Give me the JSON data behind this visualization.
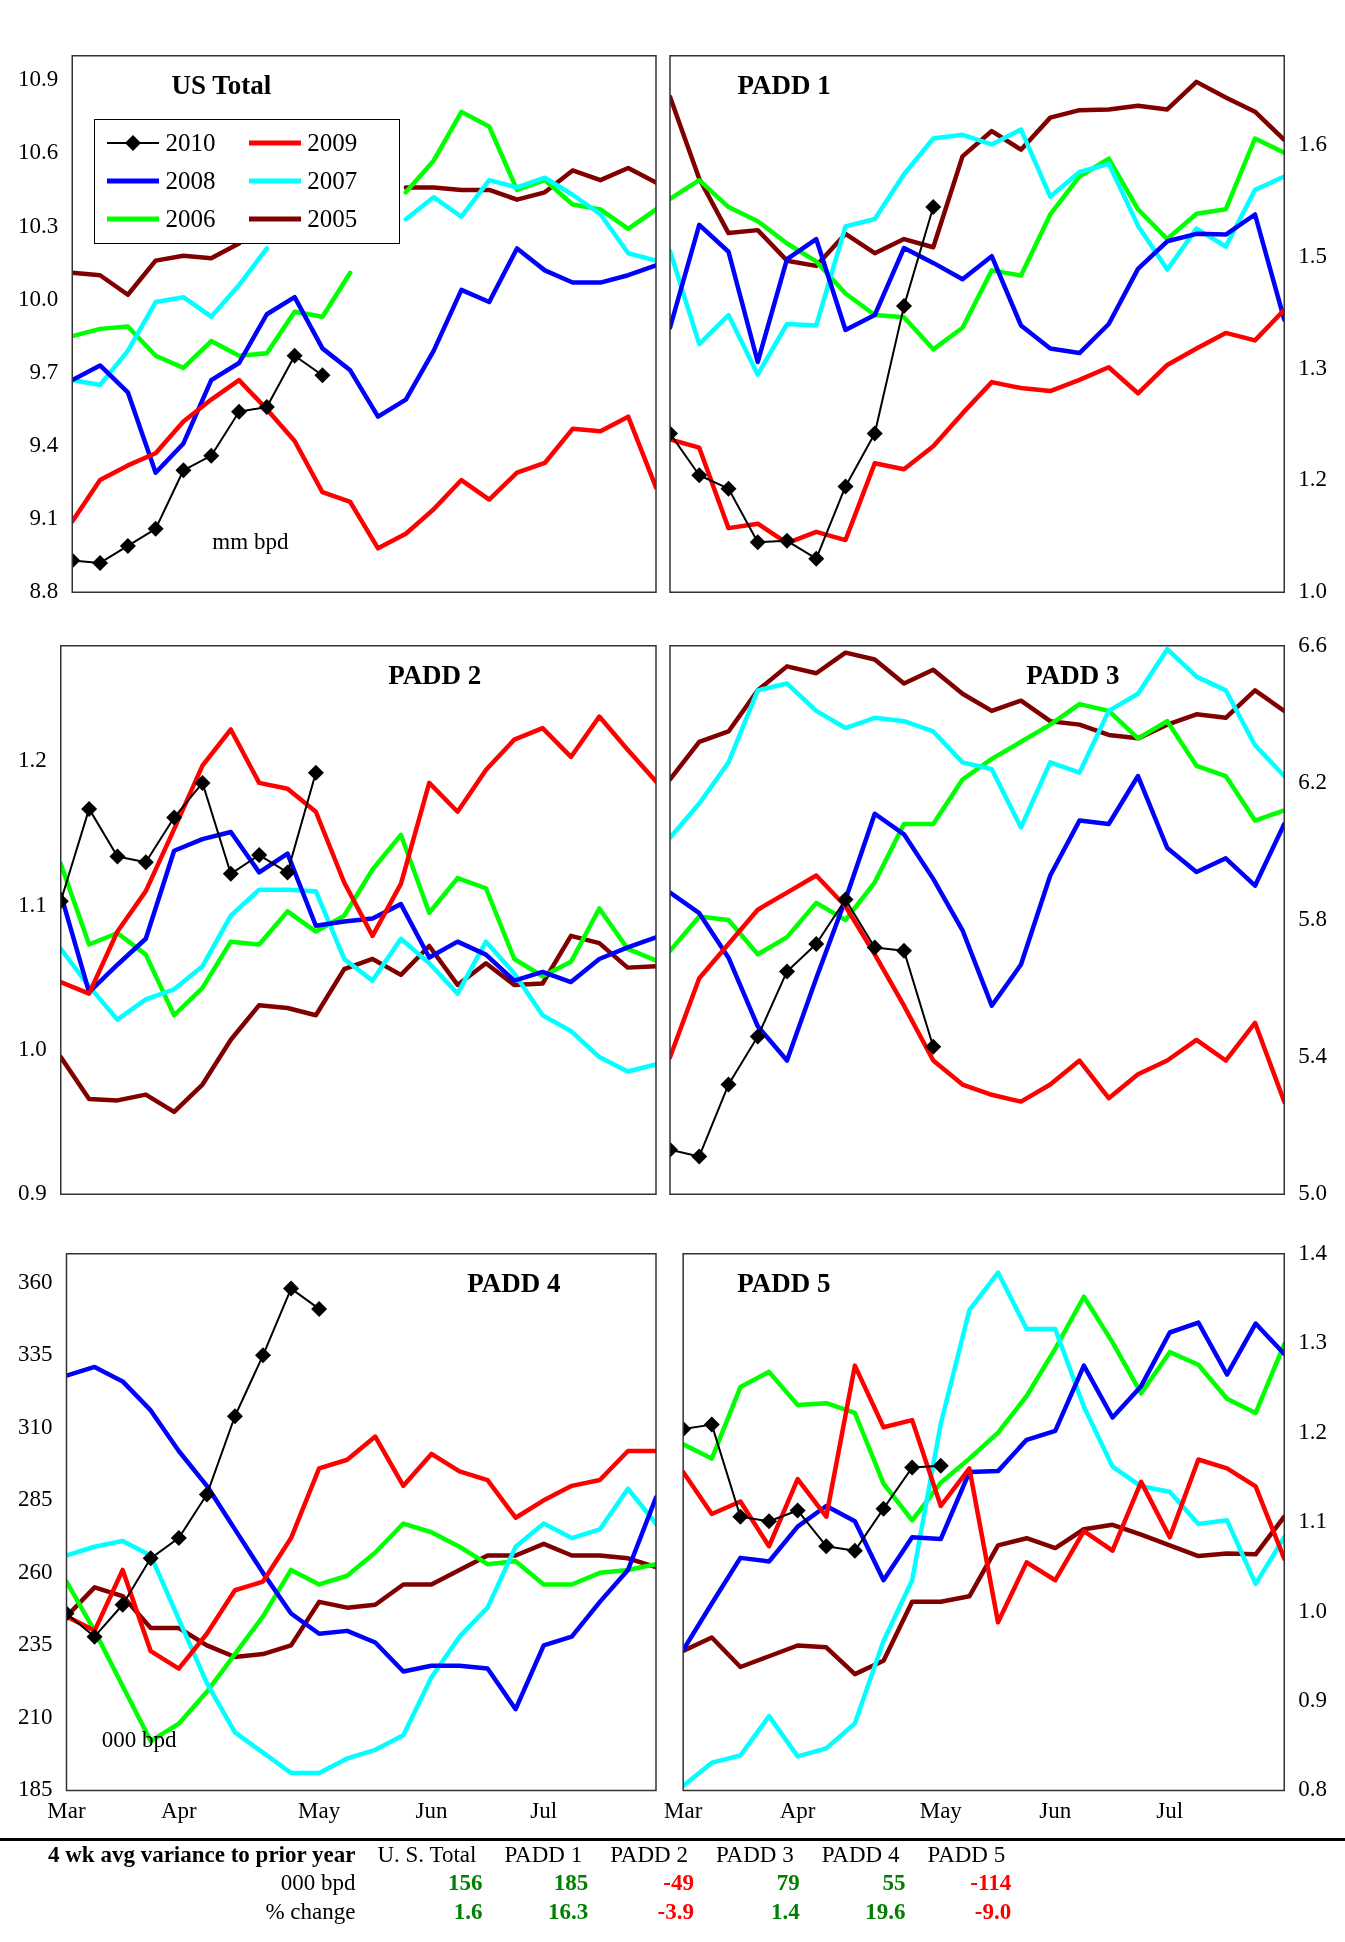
{
  "chart_data": [
    {
      "type": "line",
      "title": "US Total",
      "categories": [
        null,
        null,
        null,
        null,
        null,
        null,
        null,
        null,
        null,
        null,
        null,
        null,
        null,
        null,
        null,
        null,
        null,
        null,
        null,
        null,
        null,
        null
      ],
      "ylim": [
        8.8,
        11.0
      ],
      "yticks": [
        8.8,
        9.1,
        9.4,
        9.7,
        {
          "value": 10,
          "label": "10.0"
        },
        10.3,
        10.6,
        10.9
      ],
      "tick_labels": "y",
      "legend": "top left",
      "annotations": [
        "mm bpd"
      ],
      "series": [
        {
          "name": "2010",
          "color": "#000000",
          "marker": "diamond",
          "values": [
            8.93,
            8.92,
            8.99,
            9.06,
            9.3,
            9.36,
            9.54,
            9.56,
            9.77,
            9.69,
            null,
            null,
            null,
            null,
            null,
            null,
            null,
            null,
            null,
            null,
            null,
            null
          ]
        },
        {
          "name": "2009",
          "color": "#ff0000",
          "values": [
            9.09,
            9.26,
            9.32,
            9.37,
            9.5,
            9.59,
            9.67,
            9.55,
            9.42,
            9.21,
            9.17,
            8.98,
            9.04,
            9.14,
            9.26,
            9.18,
            9.29,
            9.33,
            9.47,
            9.46,
            9.52,
            9.23
          ]
        },
        {
          "name": "2008",
          "color": "#0000ff",
          "values": [
            9.67,
            9.73,
            9.62,
            9.29,
            9.41,
            9.67,
            9.74,
            9.94,
            10.01,
            9.8,
            9.71,
            9.52,
            9.59,
            9.79,
            10.04,
            9.99,
            10.21,
            10.12,
            10.07,
            10.07,
            10.1,
            10.14
          ]
        },
        {
          "name": "2007",
          "color": "#00ffff",
          "values": [
            9.67,
            9.65,
            9.79,
            9.99,
            10.01,
            9.93,
            10.06,
            10.21,
            null,
            null,
            null,
            null,
            10.33,
            10.42,
            10.34,
            10.49,
            10.46,
            10.5,
            10.43,
            10.35,
            10.19,
            10.16
          ]
        },
        {
          "name": "2006",
          "color": "#00ff00",
          "values": [
            9.85,
            9.88,
            9.89,
            9.77,
            9.72,
            9.83,
            9.77,
            9.78,
            9.95,
            9.93,
            10.11,
            null,
            10.44,
            10.57,
            10.77,
            10.71,
            10.45,
            10.49,
            10.39,
            10.37,
            10.29,
            10.37
          ]
        },
        {
          "name": "2005",
          "color": "#800000",
          "values": [
            10.11,
            10.1,
            10.02,
            10.16,
            10.18,
            10.17,
            10.23,
            null,
            null,
            null,
            null,
            null,
            10.46,
            10.46,
            10.45,
            10.45,
            10.41,
            10.44,
            10.53,
            10.49,
            10.54,
            10.48
          ]
        }
      ]
    },
    {
      "type": "line",
      "title": "PADD 1",
      "categories": [
        null,
        null,
        null,
        null,
        null,
        null,
        null,
        null,
        null,
        null,
        null,
        null,
        null,
        null,
        null,
        null,
        null,
        null,
        null,
        null,
        null,
        null
      ],
      "ylim": [
        1.0,
        1.72
      ],
      "yticks": [
        {
          "value": 1,
          "label": "1.0"
        },
        {
          "value": 1.15,
          "label": "1.2"
        },
        1.3,
        {
          "value": 1.45,
          "label": "1.5"
        },
        1.6
      ],
      "tick_labels": "y",
      "series": [
        {
          "color": "#000000",
          "marker": "diamond",
          "values": [
            1.213,
            1.157,
            1.139,
            1.067,
            1.069,
            1.045,
            1.142,
            1.213,
            1.384,
            1.517,
            null,
            null,
            null,
            null,
            null,
            null,
            null,
            null,
            null,
            null,
            null,
            null
          ]
        },
        {
          "color": "#ff0000",
          "values": [
            1.205,
            1.194,
            1.086,
            1.092,
            1.066,
            1.081,
            1.07,
            1.173,
            1.165,
            1.196,
            1.24,
            1.282,
            1.274,
            1.27,
            1.285,
            1.302,
            1.267,
            1.305,
            1.327,
            1.348,
            1.338,
            1.379
          ]
        },
        {
          "color": "#0000ff",
          "values": [
            1.355,
            1.493,
            1.457,
            1.309,
            1.447,
            1.474,
            1.352,
            1.372,
            1.462,
            1.442,
            1.42,
            1.451,
            1.358,
            1.327,
            1.321,
            1.36,
            1.434,
            1.471,
            1.481,
            1.48,
            1.507,
            1.366
          ]
        },
        {
          "color": "#00ffff",
          "values": [
            1.458,
            1.333,
            1.372,
            1.292,
            1.36,
            1.358,
            1.491,
            1.501,
            1.561,
            1.609,
            1.614,
            1.601,
            1.621,
            1.531,
            1.564,
            1.575,
            1.492,
            1.433,
            1.488,
            1.464,
            1.54,
            1.558
          ]
        },
        {
          "color": "#00ff00",
          "values": [
            1.528,
            1.553,
            1.517,
            1.498,
            1.468,
            1.444,
            1.401,
            1.372,
            1.369,
            1.326,
            1.355,
            1.432,
            1.425,
            1.507,
            1.558,
            1.582,
            1.514,
            1.474,
            1.508,
            1.514,
            1.609,
            1.59
          ]
        },
        {
          "color": "#800000",
          "values": [
            1.665,
            1.555,
            1.482,
            1.486,
            1.445,
            1.438,
            1.481,
            1.455,
            1.474,
            1.463,
            1.585,
            1.619,
            1.594,
            1.637,
            1.647,
            1.648,
            1.653,
            1.648,
            1.685,
            1.664,
            1.645,
            1.607
          ]
        }
      ]
    },
    {
      "type": "line",
      "title": "PADD 2",
      "categories": [
        null,
        null,
        null,
        null,
        null,
        null,
        null,
        null,
        null,
        null,
        null,
        null,
        null,
        null,
        null,
        null,
        null,
        null,
        null,
        null,
        null,
        null
      ],
      "ylim": [
        0.9,
        1.28
      ],
      "yticks": [
        0.9,
        {
          "value": 1,
          "label": "1.0"
        },
        1.1,
        1.2
      ],
      "tick_labels": "y",
      "series": [
        {
          "color": "#000000",
          "marker": "diamond",
          "values": [
            1.103,
            1.167,
            1.134,
            1.13,
            1.161,
            1.185,
            1.122,
            1.135,
            1.123,
            1.192,
            null,
            null,
            null,
            null,
            null,
            null,
            null,
            null,
            null,
            null,
            null,
            null
          ]
        },
        {
          "color": "#ff0000",
          "values": [
            1.047,
            1.039,
            1.082,
            1.11,
            1.153,
            1.197,
            1.222,
            1.185,
            1.181,
            1.165,
            1.116,
            1.079,
            1.115,
            1.185,
            1.165,
            1.194,
            1.215,
            1.223,
            1.203,
            1.231,
            1.208,
            1.186
          ]
        },
        {
          "color": "#0000ff",
          "values": [
            1.108,
            1.04,
            1.059,
            1.077,
            1.138,
            1.146,
            1.151,
            1.123,
            1.136,
            1.086,
            1.089,
            1.091,
            1.101,
            1.064,
            1.075,
            1.066,
            1.048,
            1.054,
            1.047,
            1.063,
            1.071,
            1.078
          ]
        },
        {
          "color": "#00ffff",
          "values": [
            1.07,
            1.044,
            1.021,
            1.035,
            1.042,
            1.058,
            1.093,
            1.111,
            1.111,
            1.11,
            1.063,
            1.048,
            1.077,
            1.06,
            1.039,
            1.075,
            1.053,
            1.024,
            1.013,
            0.995,
            0.985,
            0.99
          ]
        },
        {
          "color": "#00ff00",
          "values": [
            1.129,
            1.073,
            1.081,
            1.066,
            1.024,
            1.043,
            1.075,
            1.073,
            1.096,
            1.082,
            1.093,
            1.125,
            1.149,
            1.095,
            1.119,
            1.112,
            1.063,
            1.051,
            1.061,
            1.098,
            1.07,
            1.062
          ]
        },
        {
          "color": "#800000",
          "values": [
            0.995,
            0.966,
            0.965,
            0.969,
            0.957,
            0.976,
            1.007,
            1.031,
            1.029,
            1.024,
            1.056,
            1.063,
            1.052,
            1.072,
            1.045,
            1.06,
            1.045,
            1.046,
            1.079,
            1.074,
            1.057,
            1.058
          ]
        }
      ]
    },
    {
      "type": "line",
      "title": "PADD 3",
      "categories": [
        null,
        null,
        null,
        null,
        null,
        null,
        null,
        null,
        null,
        null,
        null,
        null,
        null,
        null,
        null,
        null,
        null,
        null,
        null,
        null,
        null,
        null
      ],
      "ylim": [
        5.0,
        6.6
      ],
      "yticks": [
        {
          "value": 5,
          "label": "5.0"
        },
        5.4,
        5.8,
        6.2,
        6.6
      ],
      "tick_labels": "y",
      "series": [
        {
          "color": "#000000",
          "marker": "diamond",
          "values": [
            5.13,
            5.11,
            5.32,
            5.46,
            5.65,
            5.73,
            5.86,
            5.72,
            5.71,
            5.43,
            null,
            null,
            null,
            null,
            null,
            null,
            null,
            null,
            null,
            null,
            null,
            null
          ]
        },
        {
          "color": "#ff0000",
          "values": [
            5.4,
            5.63,
            5.73,
            5.83,
            5.88,
            5.93,
            5.84,
            5.7,
            5.55,
            5.39,
            5.32,
            5.29,
            5.27,
            5.32,
            5.39,
            5.28,
            5.35,
            5.39,
            5.45,
            5.39,
            5.5,
            5.27
          ]
        },
        {
          "color": "#0000ff",
          "values": [
            5.88,
            5.82,
            5.69,
            5.49,
            5.39,
            5.63,
            5.86,
            6.11,
            6.05,
            5.92,
            5.77,
            5.55,
            5.67,
            5.93,
            6.09,
            6.08,
            6.22,
            6.01,
            5.94,
            5.98,
            5.9,
            6.08
          ]
        },
        {
          "color": "#00ffff",
          "values": [
            6.04,
            6.14,
            6.26,
            6.47,
            6.49,
            6.41,
            6.36,
            6.39,
            6.38,
            6.35,
            6.26,
            6.24,
            6.07,
            6.26,
            6.23,
            6.41,
            6.46,
            6.59,
            6.51,
            6.47,
            6.31,
            6.22
          ]
        },
        {
          "color": "#00ff00",
          "values": [
            5.71,
            5.81,
            5.8,
            5.7,
            5.75,
            5.85,
            5.8,
            5.91,
            6.08,
            6.08,
            6.21,
            6.27,
            6.32,
            6.37,
            6.43,
            6.41,
            6.33,
            6.38,
            6.25,
            6.22,
            6.09,
            6.12
          ]
        },
        {
          "color": "#800000",
          "values": [
            6.21,
            6.32,
            6.35,
            6.47,
            6.54,
            6.52,
            6.58,
            6.56,
            6.49,
            6.53,
            6.46,
            6.41,
            6.44,
            6.38,
            6.37,
            6.34,
            6.33,
            6.37,
            6.4,
            6.39,
            6.47,
            6.41
          ]
        }
      ]
    },
    {
      "type": "line",
      "title": "PADD 4",
      "categories": [
        "Mar",
        null,
        null,
        null,
        "Apr",
        null,
        null,
        null,
        null,
        "May",
        null,
        null,
        null,
        "Jun",
        null,
        null,
        null,
        "Jul",
        null,
        null,
        null,
        null
      ],
      "ylim": [
        185,
        370
      ],
      "yticks": [
        185,
        210,
        235,
        260,
        285,
        310,
        335,
        360
      ],
      "annotations": [
        "000 bpd"
      ],
      "series": [
        {
          "color": "#000000",
          "marker": "diamond",
          "values": [
            246,
            238,
            249,
            265,
            272,
            287,
            314,
            335,
            358,
            351,
            null,
            null,
            null,
            null,
            null,
            null,
            null,
            null,
            null,
            null,
            null,
            null
          ]
        },
        {
          "color": "#ff0000",
          "values": [
            245,
            240,
            261,
            233,
            227,
            239,
            254,
            257,
            272,
            296,
            299,
            307,
            290,
            301,
            295,
            292,
            279,
            285,
            290,
            292,
            302,
            302
          ]
        },
        {
          "color": "#0000ff",
          "values": [
            328,
            331,
            326,
            316,
            302,
            290,
            275,
            260,
            246,
            239,
            240,
            236,
            226,
            228,
            228,
            227,
            213,
            235,
            238,
            250,
            261,
            286
          ]
        },
        {
          "color": "#00ffff",
          "values": [
            266,
            269,
            271,
            266,
            244,
            222,
            205,
            198,
            191,
            191,
            196,
            199,
            204,
            224,
            238,
            248,
            269,
            277,
            272,
            275,
            289,
            277
          ]
        },
        {
          "color": "#00ff00",
          "values": [
            257,
            240,
            221,
            202,
            208,
            219,
            232,
            245,
            261,
            256,
            259,
            267,
            277,
            274,
            269,
            263,
            264,
            256,
            256,
            260,
            261,
            263
          ]
        },
        {
          "color": "#800000",
          "values": [
            245,
            255,
            252,
            241,
            241,
            235,
            231,
            232,
            235,
            250,
            248,
            249,
            256,
            256,
            261,
            266,
            266,
            270,
            266,
            266,
            265,
            262
          ]
        }
      ]
    },
    {
      "type": "line",
      "title": "PADD 5",
      "categories": [
        "Mar",
        null,
        null,
        null,
        "Apr",
        null,
        null,
        null,
        null,
        "May",
        null,
        null,
        null,
        "Jun",
        null,
        null,
        null,
        "Jul",
        null,
        null,
        null,
        null
      ],
      "ylim": [
        0.8,
        1.4
      ],
      "yticks": [
        0.8,
        0.9,
        {
          "value": 1,
          "label": "1.0"
        },
        1.1,
        1.2,
        1.3,
        1.4
      ],
      "series": [
        {
          "color": "#000000",
          "marker": "diamond",
          "values": [
            1.204,
            1.209,
            1.106,
            1.101,
            1.113,
            1.073,
            1.068,
            1.115,
            1.161,
            1.163,
            null,
            null,
            null,
            null,
            null,
            null,
            null,
            null,
            null,
            null,
            null,
            null
          ]
        },
        {
          "color": "#ff0000",
          "values": [
            1.156,
            1.109,
            1.123,
            1.073,
            1.148,
            1.106,
            1.275,
            1.206,
            1.214,
            1.118,
            1.16,
            0.988,
            1.055,
            1.035,
            1.09,
            1.068,
            1.145,
            1.083,
            1.17,
            1.16,
            1.14,
            1.059
          ]
        },
        {
          "color": "#0000ff",
          "values": [
            0.957,
            1.009,
            1.06,
            1.056,
            1.095,
            1.118,
            1.101,
            1.035,
            1.083,
            1.081,
            1.156,
            1.157,
            1.192,
            1.202,
            1.275,
            1.217,
            1.252,
            1.312,
            1.323,
            1.265,
            1.322,
            1.288
          ]
        },
        {
          "color": "#00ffff",
          "values": [
            0.805,
            0.831,
            0.839,
            0.883,
            0.838,
            0.847,
            0.875,
            0.967,
            1.035,
            1.21,
            1.337,
            1.379,
            1.316,
            1.316,
            1.229,
            1.162,
            1.14,
            1.134,
            1.098,
            1.102,
            1.031,
            1.083
          ]
        },
        {
          "color": "#00ff00",
          "values": [
            1.187,
            1.171,
            1.251,
            1.268,
            1.231,
            1.233,
            1.222,
            1.143,
            1.102,
            1.144,
            1.171,
            1.2,
            1.241,
            1.294,
            1.352,
            1.301,
            1.244,
            1.29,
            1.276,
            1.238,
            1.222,
            1.299
          ]
        },
        {
          "color": "#800000",
          "values": [
            0.956,
            0.971,
            0.938,
            0.95,
            0.962,
            0.96,
            0.93,
            0.945,
            1.011,
            1.011,
            1.017,
            1.074,
            1.082,
            1.071,
            1.092,
            1.097,
            1.086,
            1.074,
            1.062,
            1.065,
            1.064,
            1.106
          ]
        }
      ]
    },
    {
      "type": "other",
      "title": "4 wk avg variance to prior year",
      "categories": [
        "U. S. Total",
        "PADD 1",
        "PADD 2",
        "PADD 3",
        "PADD 4",
        "PADD 5"
      ],
      "series": [
        {
          "name": "000 bpd",
          "colors": [
            "#008000",
            "#008000",
            "#ff0000",
            "#008000",
            "#008000",
            "#ff0000"
          ],
          "values": [
            156,
            185,
            -49,
            79,
            55,
            -114
          ],
          "value_labels": [
            "156",
            "185",
            "-49",
            "79",
            "55",
            "-114"
          ]
        },
        {
          "name": "% change",
          "colors": [
            "#008000",
            "#008000",
            "#ff0000",
            "#008000",
            "#008000",
            "#ff0000"
          ],
          "values": [
            1.6,
            16.3,
            -3.9,
            1.4,
            19.6,
            -9.0
          ],
          "value_labels": [
            "1.6",
            "16.3",
            "-3.9",
            "1.4",
            "19.6",
            "-9.0"
          ]
        }
      ]
    }
  ]
}
